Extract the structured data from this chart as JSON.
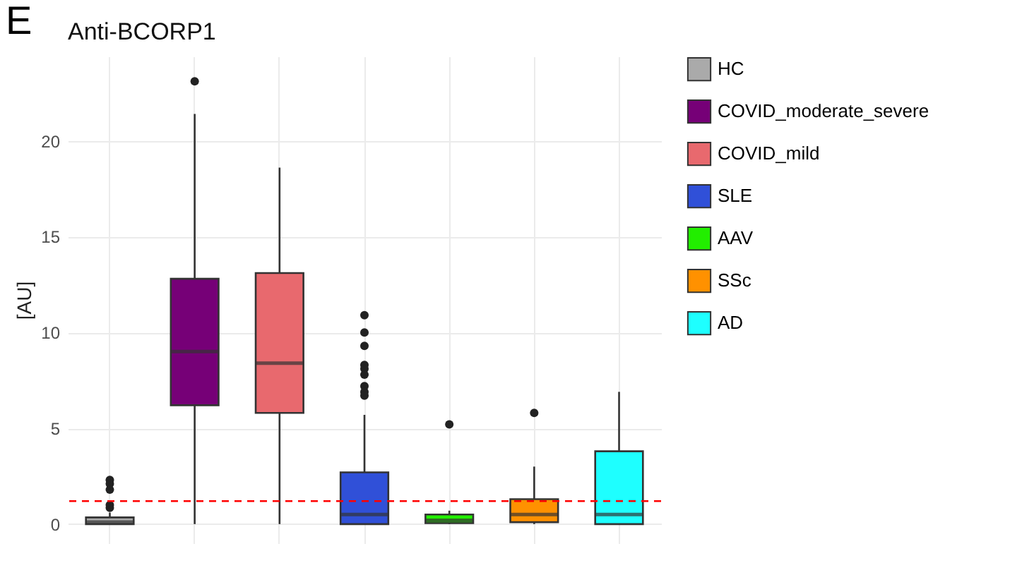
{
  "chart_data": {
    "type": "box",
    "title": "Anti-BCORP1",
    "ylabel": "[AU]",
    "annotations": [
      "E"
    ],
    "categories": [
      null,
      null,
      null,
      null,
      null,
      null,
      null
    ],
    "series": [
      {
        "name": "HC",
        "color": "#aaaaaa",
        "boxes": [
          {
            "low": 0,
            "q1": 0,
            "median": 0.1,
            "q3": 0.35,
            "high": 0.6,
            "outliers": [
              2.3,
              2.1,
              1.8,
              1.0,
              0.85
            ]
          },
          null,
          null,
          null,
          null,
          null,
          null
        ]
      },
      {
        "name": "COVID_moderate_severe",
        "color": "#760077",
        "boxes": [
          null,
          {
            "low": 0,
            "q1": 6.2,
            "median": 9.0,
            "q3": 12.8,
            "high": 21.4,
            "outliers": [
              23.1
            ]
          },
          null,
          null,
          null,
          null,
          null
        ]
      },
      {
        "name": "COVID_mild",
        "color": "#e8696e",
        "boxes": [
          null,
          null,
          {
            "low": 0,
            "q1": 5.8,
            "median": 8.4,
            "q3": 13.1,
            "high": 18.6
          },
          null,
          null,
          null,
          null
        ]
      },
      {
        "name": "SLE",
        "color": "#3050d8",
        "boxes": [
          null,
          null,
          null,
          {
            "low": 0,
            "q1": 0,
            "median": 0.5,
            "q3": 2.7,
            "high": 5.7,
            "outliers": [
              10.9,
              10.0,
              9.3,
              8.3,
              8.1,
              7.8,
              7.2,
              6.9,
              6.7
            ]
          },
          null,
          null,
          null
        ]
      },
      {
        "name": "AAV",
        "color": "#22ee00",
        "boxes": [
          null,
          null,
          null,
          null,
          {
            "low": 0,
            "q1": 0.05,
            "median": 0.2,
            "q3": 0.5,
            "high": 0.7,
            "outliers": [
              5.2
            ]
          },
          null,
          null
        ]
      },
      {
        "name": "SSc",
        "color": "#ff9100",
        "boxes": [
          null,
          null,
          null,
          null,
          null,
          {
            "low": 0,
            "q1": 0.1,
            "median": 0.5,
            "q3": 1.3,
            "high": 3.0,
            "outliers": [
              5.8
            ]
          },
          null
        ]
      },
      {
        "name": "AD",
        "color": "#1effff",
        "boxes": [
          null,
          null,
          null,
          null,
          null,
          null,
          {
            "low": 0,
            "q1": 0,
            "median": 0.5,
            "q3": 3.8,
            "high": 6.9
          }
        ]
      }
    ],
    "ref_lines": [
      {
        "axis": "y",
        "value": 1.2,
        "color": "#ff0000",
        "line_style": "dashed"
      }
    ],
    "ylim": [
      -1,
      24.4
    ],
    "yticks": [
      0,
      5,
      10,
      15,
      20
    ],
    "grid": true,
    "legend": "right",
    "tick_labels": "y"
  }
}
